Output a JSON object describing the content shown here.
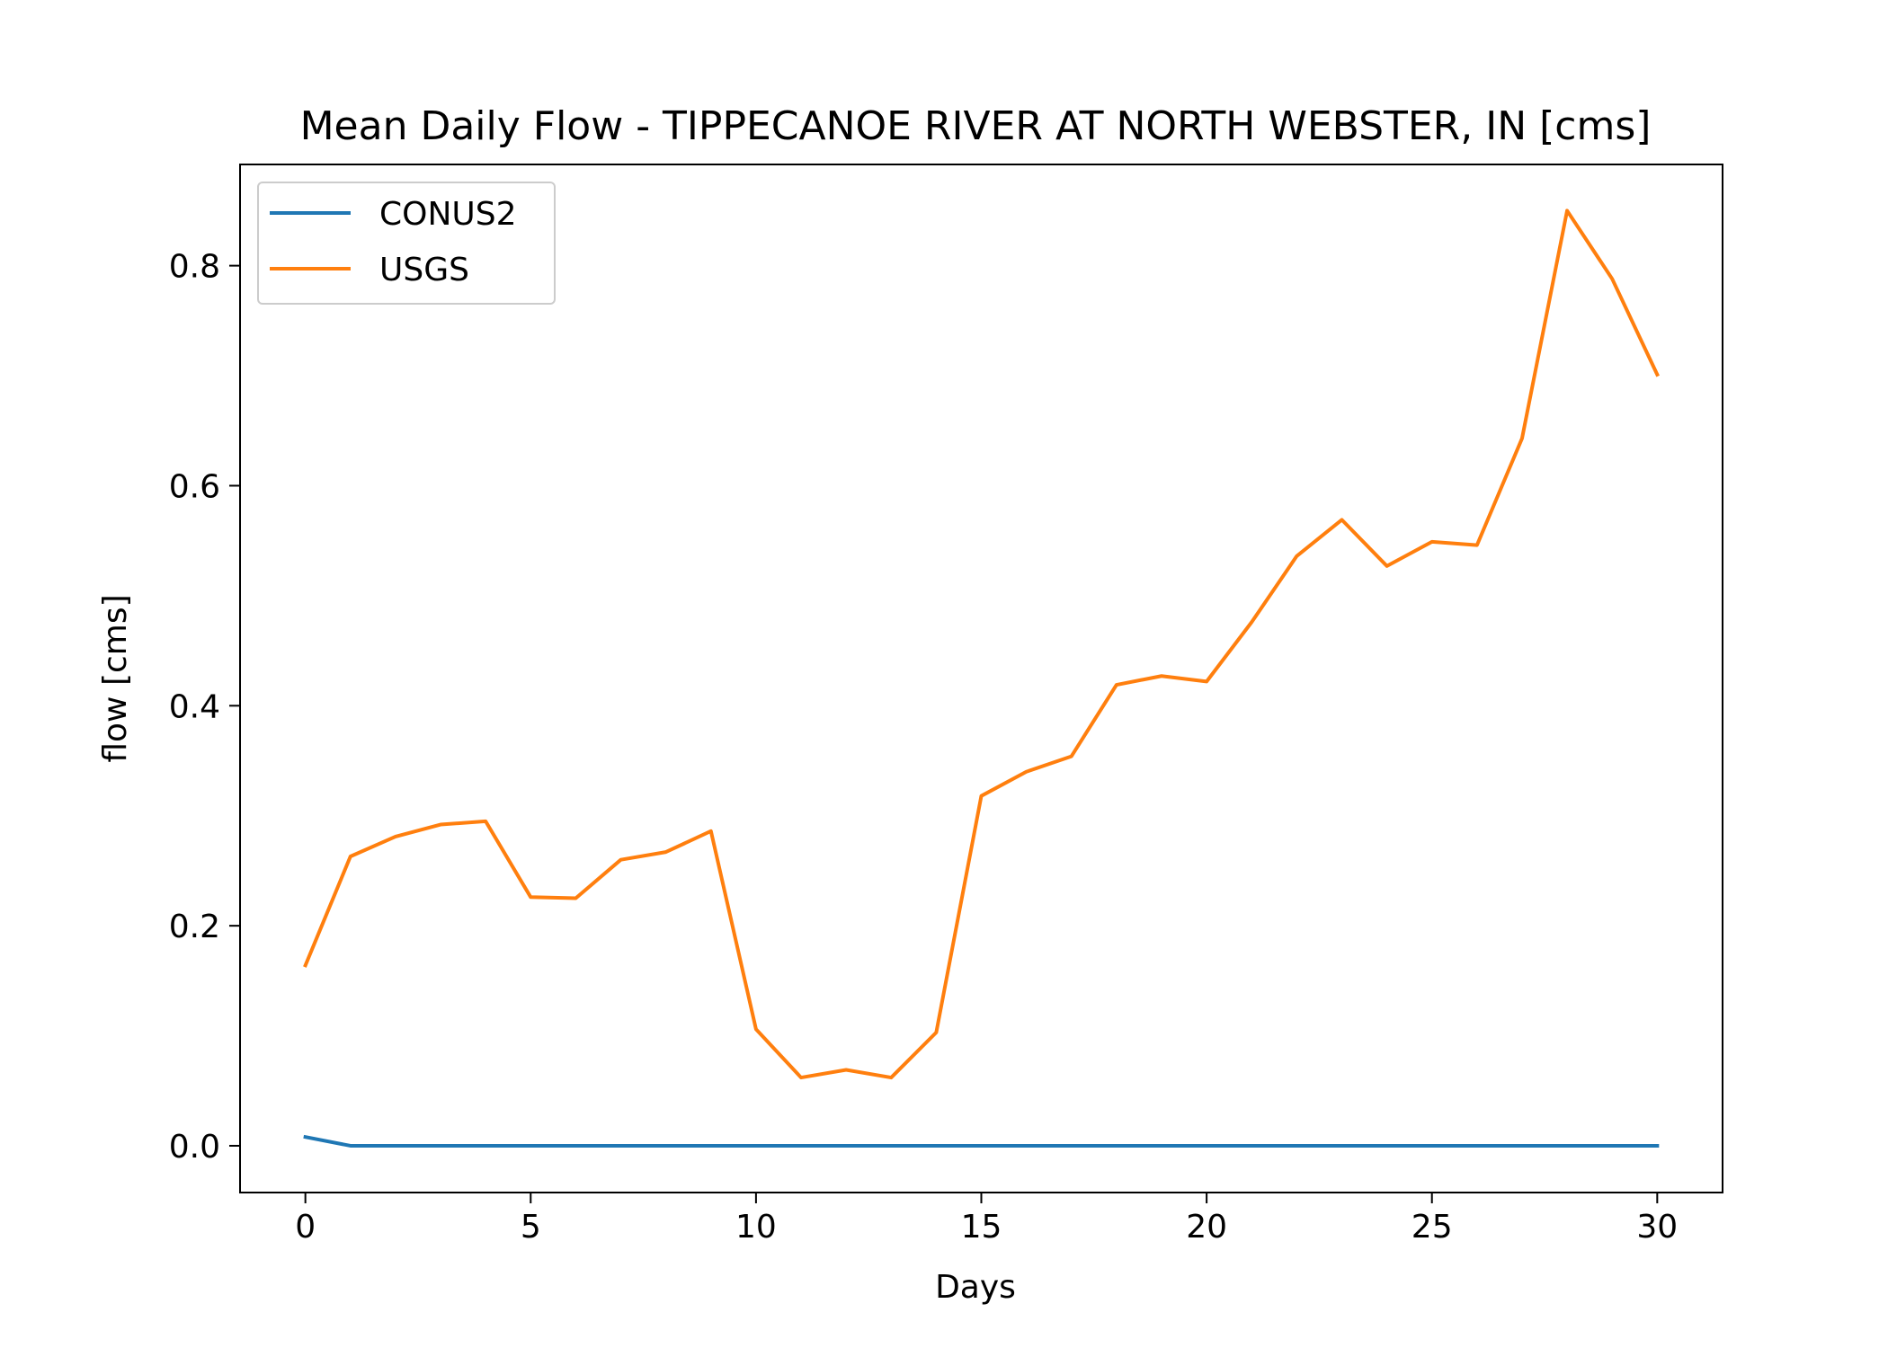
{
  "chart_data": {
    "type": "line",
    "title": "Mean Daily Flow - TIPPECANOE RIVER AT NORTH WEBSTER, IN [cms]",
    "xlabel": "Days",
    "ylabel": "flow [cms]",
    "xlim": [
      -1.45,
      31.45
    ],
    "ylim": [
      -0.0425,
      0.892
    ],
    "xticks": [
      0,
      5,
      10,
      15,
      20,
      25,
      30
    ],
    "yticks": [
      0.0,
      0.2,
      0.4,
      0.6,
      0.8
    ],
    "ytick_labels": [
      "0.0",
      "0.2",
      "0.4",
      "0.6",
      "0.8"
    ],
    "grid": false,
    "legend_position": "top-left",
    "x": [
      0,
      1,
      2,
      3,
      4,
      5,
      6,
      7,
      8,
      9,
      10,
      11,
      12,
      13,
      14,
      15,
      16,
      17,
      18,
      19,
      20,
      21,
      22,
      23,
      24,
      25,
      26,
      27,
      28,
      29,
      30
    ],
    "series": [
      {
        "name": "CONUS2",
        "color": "#1f77b4",
        "values": [
          0.008,
          0,
          0,
          0,
          0,
          0,
          0,
          0,
          0,
          0,
          0,
          0,
          0,
          0,
          0,
          0,
          0,
          0,
          0,
          0,
          0,
          0,
          0,
          0,
          0,
          0,
          0,
          0,
          0,
          0,
          0
        ]
      },
      {
        "name": "USGS",
        "color": "#ff7f0e",
        "values": [
          0.164,
          0.263,
          0.281,
          0.292,
          0.295,
          0.226,
          0.225,
          0.26,
          0.267,
          0.286,
          0.106,
          0.062,
          0.069,
          0.062,
          0.103,
          0.318,
          0.34,
          0.354,
          0.419,
          0.427,
          0.422,
          0.476,
          0.536,
          0.569,
          0.527,
          0.549,
          0.546,
          0.643,
          0.85,
          0.788,
          0.701
        ]
      }
    ]
  }
}
